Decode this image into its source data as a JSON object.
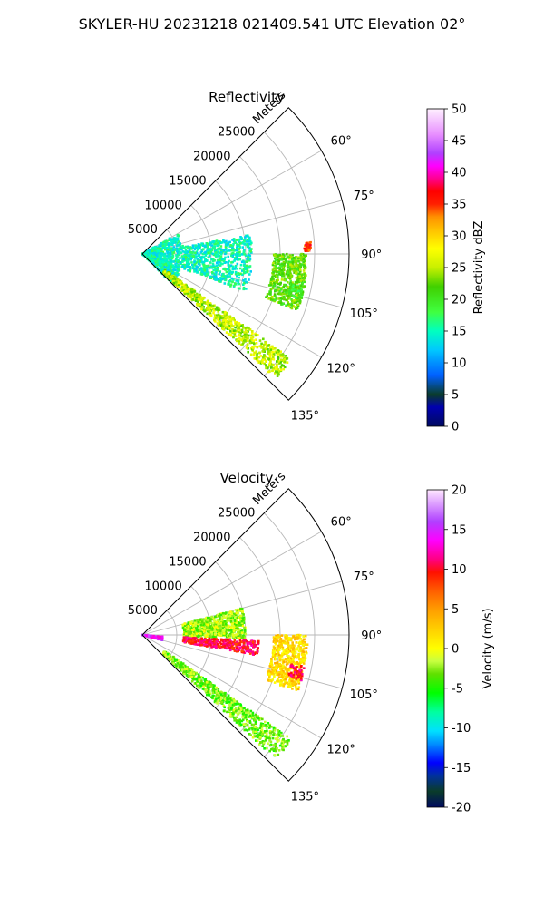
{
  "figure": {
    "title": "SKYLER-HU  20231218  021409.541 UTC Elevation 02°"
  },
  "chart_data": [
    {
      "type": "scatter",
      "subtype": "polar-sector-ppi",
      "title": "Reflectivity",
      "radial_label": "Meters",
      "range_rings": [
        5000,
        10000,
        15000,
        20000,
        25000
      ],
      "angle_ticks": [
        "60°",
        "75°",
        "90°",
        "105°",
        "120°",
        "135°"
      ],
      "angle_range_deg": [
        45,
        135
      ],
      "range_max": 30000,
      "grid": true,
      "colorbar": {
        "label": "Reflectivity dBZ",
        "min": 0,
        "max": 50,
        "ticks": [
          0,
          5,
          10,
          15,
          20,
          25,
          30,
          35,
          40,
          45,
          50
        ],
        "colormap": "NWS reflectivity"
      },
      "features": [
        {
          "name": "near-range clutter fan",
          "angle_deg": [
            60,
            135
          ],
          "range_m": [
            0,
            6000
          ],
          "value_dbz": 15
        },
        {
          "name": "ground echo strip",
          "angle_deg": [
            125,
            133
          ],
          "range_m": [
            4000,
            26500
          ],
          "value_dbz": 25
        },
        {
          "name": "central echo cluster",
          "angle_deg": [
            80,
            110
          ],
          "range_m": [
            6000,
            16000
          ],
          "value_dbz": 15
        },
        {
          "name": "linear echo",
          "angle_deg": [
            90,
            110
          ],
          "range_m": [
            19000,
            24000
          ],
          "value_dbz": 22
        },
        {
          "name": "blob near 105°",
          "angle_deg": [
            101,
            106
          ],
          "range_m": [
            22000,
            24000
          ],
          "value_dbz": 20
        },
        {
          "name": "strong point echo",
          "angle_deg": [
            86,
            89
          ],
          "range_m": [
            23500,
            24500
          ],
          "value_dbz": 35
        }
      ]
    },
    {
      "type": "scatter",
      "subtype": "polar-sector-ppi",
      "title": "Velocity",
      "radial_label": "Meters",
      "range_rings": [
        5000,
        10000,
        15000,
        20000,
        25000
      ],
      "angle_ticks": [
        "60°",
        "75°",
        "90°",
        "105°",
        "120°",
        "135°"
      ],
      "angle_range_deg": [
        45,
        135
      ],
      "range_max": 30000,
      "grid": true,
      "colorbar": {
        "label": "Velocity (m/s)",
        "min": -20,
        "max": 20,
        "ticks": [
          -20,
          -15,
          -10,
          -5,
          0,
          5,
          10,
          15,
          20
        ],
        "colormap": "NWS velocity"
      },
      "features": [
        {
          "name": "near-range fan",
          "angle_deg": [
            95,
            105
          ],
          "range_m": [
            0,
            3000
          ],
          "value_ms": 15
        },
        {
          "name": "ground echo strip",
          "angle_deg": [
            125,
            133
          ],
          "range_m": [
            4000,
            26500
          ],
          "value_ms": -3
        },
        {
          "name": "inbound cluster",
          "angle_deg": [
            75,
            92
          ],
          "range_m": [
            6000,
            15000
          ],
          "value_ms": -2
        },
        {
          "name": "outbound band",
          "angle_deg": [
            93,
            100
          ],
          "range_m": [
            6000,
            17000
          ],
          "value_ms": 10
        },
        {
          "name": "linear echo",
          "angle_deg": [
            90,
            110
          ],
          "range_m": [
            19000,
            24000
          ],
          "value_ms": 2
        },
        {
          "name": "blob near 105°",
          "angle_deg": [
            101,
            106
          ],
          "range_m": [
            22000,
            24000
          ],
          "value_ms": 10
        }
      ]
    }
  ]
}
